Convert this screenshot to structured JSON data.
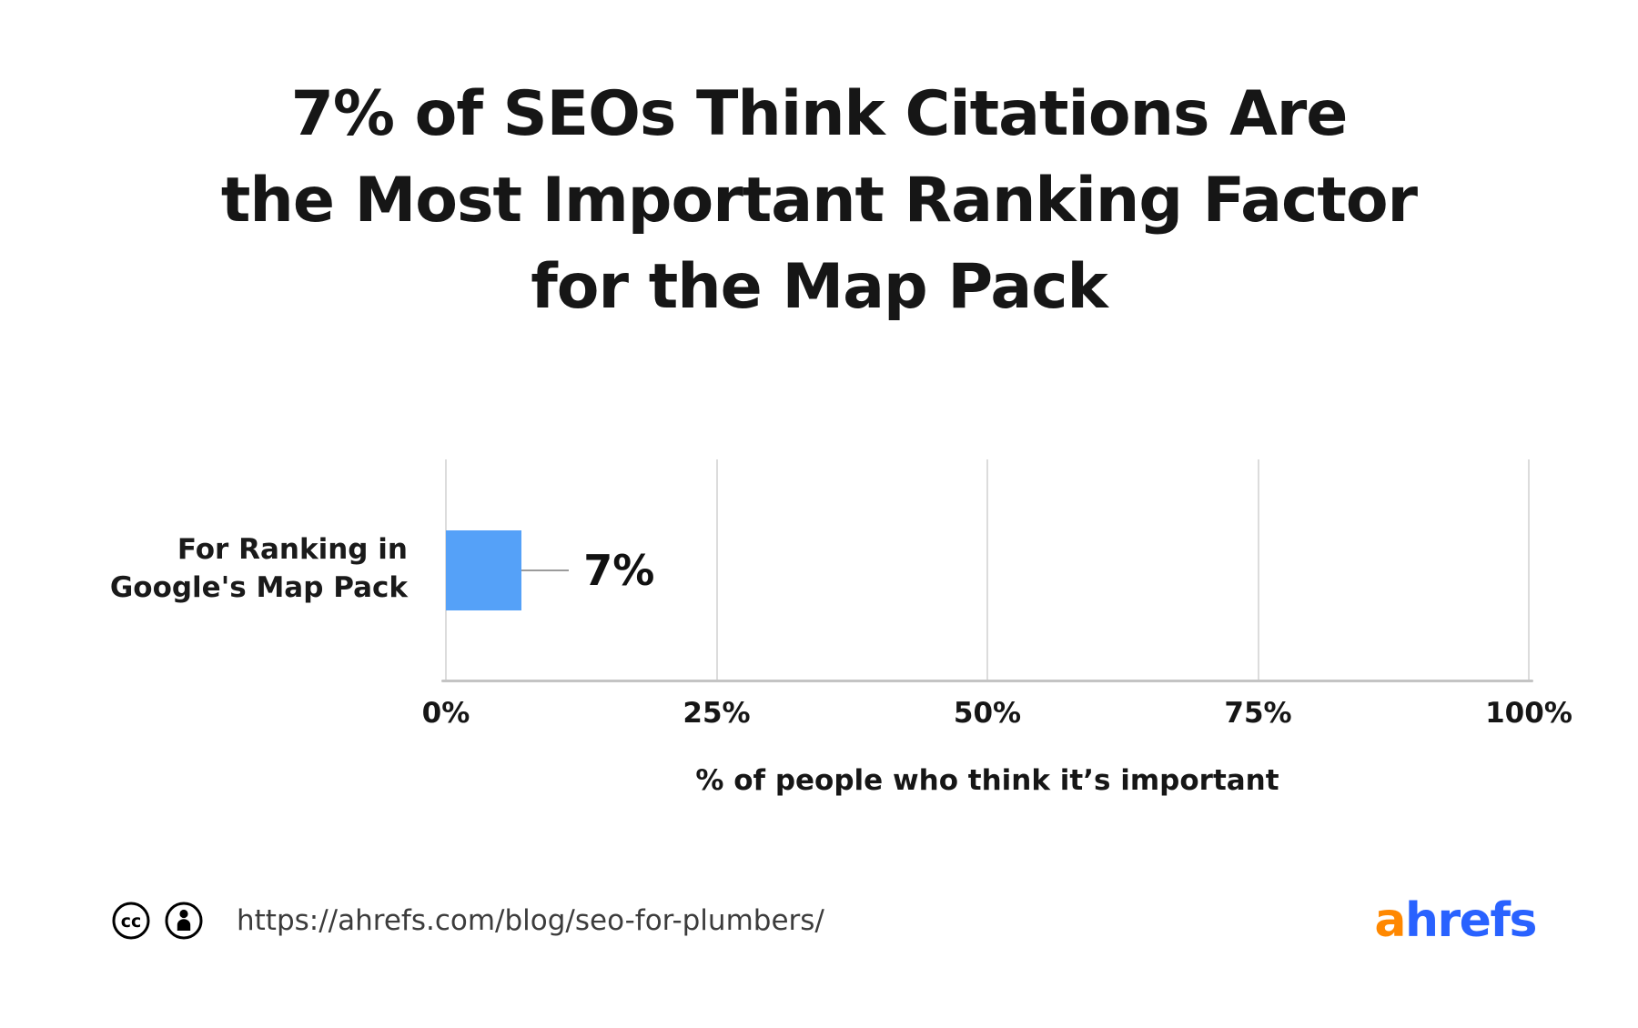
{
  "title": {
    "line1": "7% of SEOs Think Citations Are",
    "line2": "the Most Important Ranking Factor",
    "line3": "for the Map Pack"
  },
  "chart_data": {
    "type": "bar",
    "orientation": "horizontal",
    "title": "7% of SEOs Think Citations Are the Most Important Ranking Factor for the Map Pack",
    "categories": [
      "For Ranking in Google's Map Pack"
    ],
    "category_label_lines": [
      "For Ranking in",
      "Google's Map Pack"
    ],
    "values": [
      7
    ],
    "value_labels": [
      "7%"
    ],
    "xlabel": "% of people who think it’s important",
    "ylabel": "",
    "xlim": [
      0,
      100
    ],
    "x_tick_labels": [
      "0%",
      "25%",
      "50%",
      "75%",
      "100%"
    ],
    "x_tick_positions": [
      0,
      25,
      50,
      75,
      100
    ],
    "grid": true,
    "legend": false,
    "bar_color": "#55a1f8"
  },
  "footer": {
    "license_icons": [
      "cc-icon",
      "attribution-icon"
    ],
    "url": "https://ahrefs.com/blog/seo-for-plumbers/",
    "logo": {
      "prefix": "a",
      "suffix": "hrefs",
      "prefix_color": "#ff8800",
      "suffix_color": "#2962ff"
    }
  }
}
